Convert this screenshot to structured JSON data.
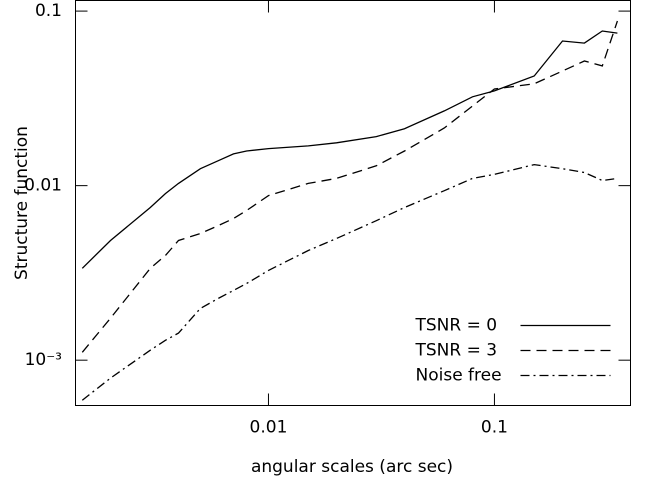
{
  "chart_data": {
    "type": "line",
    "xlabel": "angular scales (arc sec)",
    "ylabel": "Structure function",
    "xscale": "log",
    "yscale": "log",
    "xlim": [
      0.0014,
      0.4
    ],
    "ylim": [
      0.00055,
      0.115
    ],
    "xticks": [
      0.01,
      0.1
    ],
    "yticks": [
      {
        "value": 0.001,
        "label": "10⁻³"
      },
      0.01,
      0.1
    ],
    "legend": "lower right",
    "x": [
      0.0015,
      0.002,
      0.003,
      0.0035,
      0.004,
      0.005,
      0.006,
      0.007,
      0.008,
      0.01,
      0.015,
      0.02,
      0.03,
      0.04,
      0.06,
      0.08,
      0.1,
      0.15,
      0.2,
      0.25,
      0.3,
      0.35
    ],
    "series": [
      {
        "name": "TSNR = 0",
        "color": "#000000",
        "line_style": "solid",
        "values": [
          0.00336,
          0.00485,
          0.00749,
          0.009,
          0.0103,
          0.0125,
          0.0139,
          0.0152,
          0.0158,
          0.0163,
          0.0169,
          0.0176,
          0.0191,
          0.0212,
          0.0268,
          0.0323,
          0.0349,
          0.0425,
          0.0674,
          0.0656,
          0.0769,
          0.0748
        ]
      },
      {
        "name": "TSNR = 3",
        "color": "#000000",
        "line_style": "dashed",
        "values": [
          0.00111,
          0.00174,
          0.00336,
          0.00398,
          0.00485,
          0.00532,
          0.0059,
          0.00648,
          0.0072,
          0.00877,
          0.0103,
          0.011,
          0.013,
          0.0158,
          0.0214,
          0.0286,
          0.0358,
          0.0383,
          0.0454,
          0.0518,
          0.0485,
          0.0877
        ]
      },
      {
        "name": "Noise free",
        "color": "#000000",
        "line_style": "dashdot",
        "values": [
          0.00059,
          0.00079,
          0.00114,
          0.0013,
          0.00143,
          0.00198,
          0.00226,
          0.00251,
          0.00275,
          0.00327,
          0.00425,
          0.00498,
          0.0063,
          0.00749,
          0.00936,
          0.011,
          0.0116,
          0.0132,
          0.0125,
          0.0119,
          0.0107,
          0.011
        ]
      }
    ]
  }
}
